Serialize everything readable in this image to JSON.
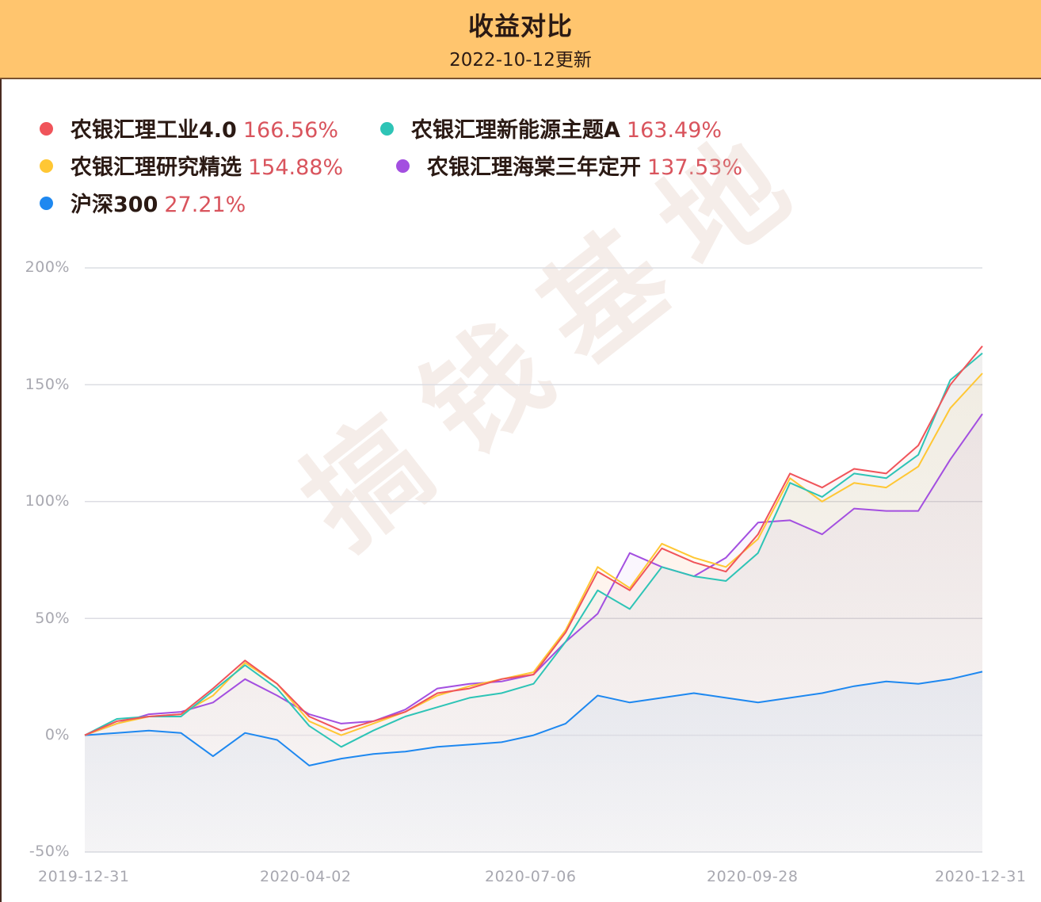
{
  "header": {
    "title": "收益对比",
    "subtitle": "2022-10-12更新"
  },
  "legend": [
    {
      "name": "农银汇理工业4.0",
      "value": "166.56%",
      "color": "#f0545a"
    },
    {
      "name": "农银汇理新能源主题A",
      "value": "163.49%",
      "color": "#2ec4b6"
    },
    {
      "name": "农银汇理研究精选",
      "value": "154.88%",
      "color": "#ffc734"
    },
    {
      "name": "农银汇理海棠三年定开",
      "value": "137.53%",
      "color": "#a34fe0"
    },
    {
      "name": "沪深300",
      "value": "27.21%",
      "color": "#1e88f0"
    }
  ],
  "watermark": "搞钱基地",
  "chart_data": {
    "type": "line",
    "title": "收益对比",
    "subtitle": "2022-10-12更新",
    "xlabel": "",
    "ylabel": "",
    "ylim": [
      -50,
      200
    ],
    "yticks": [
      "200%",
      "150%",
      "100%",
      "50%",
      "0%",
      "-50%"
    ],
    "xticks": [
      "2019-12-31",
      "2020-04-02",
      "2020-07-06",
      "2020-09-28",
      "2020-12-31"
    ],
    "grid": true,
    "legend_position": "top-left",
    "x": [
      "2019-12-31",
      "2020-01-14",
      "2020-01-28",
      "2020-02-10",
      "2020-02-24",
      "2020-03-09",
      "2020-03-23",
      "2020-04-02",
      "2020-04-16",
      "2020-04-30",
      "2020-05-14",
      "2020-05-28",
      "2020-06-11",
      "2020-06-25",
      "2020-07-06",
      "2020-07-20",
      "2020-08-03",
      "2020-08-17",
      "2020-08-31",
      "2020-09-14",
      "2020-09-28",
      "2020-10-12",
      "2020-10-26",
      "2020-11-09",
      "2020-11-23",
      "2020-12-07",
      "2020-12-17",
      "2020-12-24",
      "2020-12-31"
    ],
    "series": [
      {
        "name": "农银汇理工业4.0",
        "final": 166.56,
        "color": "#f0545a",
        "values": [
          0,
          6,
          8,
          9,
          20,
          32,
          22,
          8,
          2,
          6,
          10,
          18,
          20,
          24,
          26,
          44,
          70,
          62,
          80,
          74,
          70,
          86,
          112,
          106,
          114,
          112,
          124,
          150,
          166.56
        ]
      },
      {
        "name": "农银汇理新能源主题A",
        "final": 163.49,
        "color": "#2ec4b6",
        "values": [
          0,
          7,
          8,
          8,
          19,
          30,
          20,
          4,
          -5,
          2,
          8,
          12,
          16,
          18,
          22,
          40,
          62,
          54,
          72,
          68,
          66,
          78,
          108,
          102,
          112,
          110,
          120,
          152,
          163.49
        ]
      },
      {
        "name": "农银汇理研究精选",
        "final": 154.88,
        "color": "#ffc734",
        "values": [
          0,
          5,
          8,
          9,
          17,
          31,
          22,
          6,
          0,
          5,
          10,
          17,
          21,
          24,
          27,
          45,
          72,
          63,
          82,
          76,
          72,
          84,
          110,
          100,
          108,
          106,
          115,
          140,
          154.88
        ]
      },
      {
        "name": "农银汇理海棠三年定开",
        "final": 137.53,
        "color": "#a34fe0",
        "values": [
          0,
          5,
          9,
          10,
          14,
          24,
          17,
          9,
          5,
          6,
          11,
          20,
          22,
          23,
          26,
          40,
          52,
          78,
          72,
          68,
          76,
          91,
          92,
          86,
          97,
          96,
          96,
          118,
          137.53
        ]
      },
      {
        "name": "沪深300",
        "final": 27.21,
        "color": "#1e88f0",
        "values": [
          0,
          1,
          2,
          1,
          -9,
          1,
          -2,
          -13,
          -10,
          -8,
          -7,
          -5,
          -4,
          -3,
          0,
          5,
          17,
          14,
          16,
          18,
          16,
          14,
          16,
          18,
          21,
          23,
          22,
          24,
          27.21
        ]
      }
    ]
  }
}
